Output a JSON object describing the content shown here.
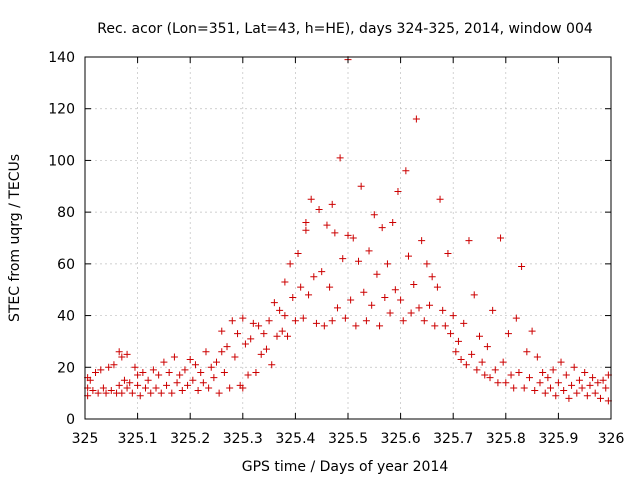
{
  "chart_data": {
    "type": "scatter",
    "title": "Rec. acor (Lon=351, Lat=43, h=HE), days 324-325, 2014, window 004",
    "xlabel": "GPS time / Days of year 2014",
    "ylabel": "STEC from uqrg / TECUs",
    "xlim": [
      325,
      326
    ],
    "ylim": [
      0,
      140
    ],
    "xticks": [
      "325",
      "325.1",
      "325.2",
      "325.3",
      "325.4",
      "325.5",
      "325.6",
      "325.7",
      "325.8",
      "325.9",
      "326"
    ],
    "yticks": [
      "0",
      "20",
      "40",
      "60",
      "80",
      "100",
      "120",
      "140"
    ],
    "grid": true,
    "marker": "plus",
    "marker_color": "#cc0000",
    "series": [
      {
        "name": "",
        "points": [
          [
            325.005,
            16
          ],
          [
            325.005,
            12
          ],
          [
            325.005,
            9
          ],
          [
            325.01,
            15
          ],
          [
            325.015,
            11
          ],
          [
            325.02,
            18
          ],
          [
            325.025,
            10
          ],
          [
            325.03,
            19
          ],
          [
            325.035,
            12
          ],
          [
            325.04,
            10
          ],
          [
            325.045,
            20
          ],
          [
            325.05,
            11
          ],
          [
            325.055,
            21
          ],
          [
            325.06,
            10
          ],
          [
            325.065,
            26
          ],
          [
            325.065,
            13
          ],
          [
            325.07,
            24
          ],
          [
            325.07,
            10
          ],
          [
            325.075,
            15
          ],
          [
            325.08,
            12
          ],
          [
            325.08,
            25
          ],
          [
            325.085,
            14
          ],
          [
            325.09,
            10
          ],
          [
            325.095,
            20
          ],
          [
            325.1,
            13
          ],
          [
            325.1,
            17
          ],
          [
            325.105,
            9
          ],
          [
            325.11,
            18
          ],
          [
            325.115,
            12
          ],
          [
            325.12,
            15
          ],
          [
            325.125,
            10
          ],
          [
            325.13,
            19
          ],
          [
            325.135,
            12
          ],
          [
            325.14,
            17
          ],
          [
            325.145,
            10
          ],
          [
            325.15,
            22
          ],
          [
            325.155,
            13
          ],
          [
            325.16,
            18
          ],
          [
            325.165,
            10
          ],
          [
            325.17,
            24
          ],
          [
            325.175,
            14
          ],
          [
            325.18,
            17
          ],
          [
            325.185,
            11
          ],
          [
            325.19,
            19
          ],
          [
            325.195,
            13
          ],
          [
            325.2,
            23
          ],
          [
            325.205,
            15
          ],
          [
            325.21,
            21
          ],
          [
            325.215,
            11
          ],
          [
            325.22,
            18
          ],
          [
            325.225,
            14
          ],
          [
            325.23,
            26
          ],
          [
            325.235,
            12
          ],
          [
            325.24,
            20
          ],
          [
            325.245,
            16
          ],
          [
            325.25,
            22
          ],
          [
            325.255,
            10
          ],
          [
            325.26,
            34
          ],
          [
            325.26,
            26
          ],
          [
            325.265,
            18
          ],
          [
            325.27,
            28
          ],
          [
            325.275,
            12
          ],
          [
            325.28,
            38
          ],
          [
            325.285,
            24
          ],
          [
            325.29,
            33
          ],
          [
            325.295,
            13
          ],
          [
            325.3,
            39
          ],
          [
            325.3,
            12
          ],
          [
            325.305,
            29
          ],
          [
            325.31,
            17
          ],
          [
            325.315,
            31
          ],
          [
            325.32,
            37
          ],
          [
            325.325,
            18
          ],
          [
            325.33,
            36
          ],
          [
            325.335,
            25
          ],
          [
            325.34,
            33
          ],
          [
            325.345,
            27
          ],
          [
            325.35,
            38
          ],
          [
            325.355,
            21
          ],
          [
            325.36,
            45
          ],
          [
            325.365,
            32
          ],
          [
            325.37,
            42
          ],
          [
            325.375,
            34
          ],
          [
            325.38,
            53
          ],
          [
            325.38,
            40
          ],
          [
            325.385,
            32
          ],
          [
            325.39,
            60
          ],
          [
            325.395,
            47
          ],
          [
            325.4,
            38
          ],
          [
            325.405,
            64
          ],
          [
            325.41,
            51
          ],
          [
            325.415,
            39
          ],
          [
            325.42,
            73
          ],
          [
            325.42,
            76
          ],
          [
            325.425,
            48
          ],
          [
            325.43,
            85
          ],
          [
            325.435,
            55
          ],
          [
            325.44,
            37
          ],
          [
            325.445,
            81
          ],
          [
            325.45,
            57
          ],
          [
            325.455,
            36
          ],
          [
            325.46,
            75
          ],
          [
            325.465,
            51
          ],
          [
            325.47,
            83
          ],
          [
            325.47,
            38
          ],
          [
            325.475,
            72
          ],
          [
            325.48,
            43
          ],
          [
            325.485,
            101
          ],
          [
            325.49,
            62
          ],
          [
            325.495,
            39
          ],
          [
            325.5,
            139
          ],
          [
            325.5,
            71
          ],
          [
            325.505,
            46
          ],
          [
            325.51,
            70
          ],
          [
            325.515,
            36
          ],
          [
            325.52,
            61
          ],
          [
            325.525,
            90
          ],
          [
            325.53,
            49
          ],
          [
            325.535,
            38
          ],
          [
            325.54,
            65
          ],
          [
            325.545,
            44
          ],
          [
            325.55,
            79
          ],
          [
            325.555,
            56
          ],
          [
            325.56,
            36
          ],
          [
            325.565,
            74
          ],
          [
            325.57,
            47
          ],
          [
            325.575,
            60
          ],
          [
            325.58,
            41
          ],
          [
            325.585,
            76
          ],
          [
            325.59,
            50
          ],
          [
            325.595,
            88
          ],
          [
            325.6,
            46
          ],
          [
            325.605,
            38
          ],
          [
            325.61,
            96
          ],
          [
            325.615,
            63
          ],
          [
            325.62,
            41
          ],
          [
            325.625,
            52
          ],
          [
            325.63,
            116
          ],
          [
            325.635,
            43
          ],
          [
            325.64,
            69
          ],
          [
            325.645,
            38
          ],
          [
            325.65,
            60
          ],
          [
            325.655,
            44
          ],
          [
            325.66,
            55
          ],
          [
            325.665,
            36
          ],
          [
            325.67,
            51
          ],
          [
            325.675,
            85
          ],
          [
            325.68,
            42
          ],
          [
            325.685,
            36
          ],
          [
            325.69,
            64
          ],
          [
            325.695,
            33
          ],
          [
            325.7,
            40
          ],
          [
            325.705,
            26
          ],
          [
            325.71,
            30
          ],
          [
            325.715,
            23
          ],
          [
            325.72,
            37
          ],
          [
            325.725,
            21
          ],
          [
            325.73,
            69
          ],
          [
            325.735,
            25
          ],
          [
            325.74,
            48
          ],
          [
            325.745,
            19
          ],
          [
            325.75,
            32
          ],
          [
            325.755,
            22
          ],
          [
            325.76,
            17
          ],
          [
            325.765,
            28
          ],
          [
            325.77,
            16
          ],
          [
            325.775,
            42
          ],
          [
            325.78,
            19
          ],
          [
            325.785,
            14
          ],
          [
            325.79,
            70
          ],
          [
            325.795,
            22
          ],
          [
            325.8,
            14
          ],
          [
            325.805,
            33
          ],
          [
            325.81,
            17
          ],
          [
            325.815,
            12
          ],
          [
            325.82,
            39
          ],
          [
            325.825,
            18
          ],
          [
            325.83,
            59
          ],
          [
            325.835,
            12
          ],
          [
            325.84,
            26
          ],
          [
            325.845,
            16
          ],
          [
            325.85,
            34
          ],
          [
            325.855,
            11
          ],
          [
            325.86,
            24
          ],
          [
            325.865,
            14
          ],
          [
            325.87,
            18
          ],
          [
            325.875,
            10
          ],
          [
            325.88,
            16
          ],
          [
            325.885,
            12
          ],
          [
            325.89,
            19
          ],
          [
            325.895,
            9
          ],
          [
            325.9,
            14
          ],
          [
            325.905,
            22
          ],
          [
            325.91,
            11
          ],
          [
            325.915,
            17
          ],
          [
            325.92,
            8
          ],
          [
            325.925,
            13
          ],
          [
            325.93,
            20
          ],
          [
            325.935,
            10
          ],
          [
            325.94,
            15
          ],
          [
            325.945,
            12
          ],
          [
            325.95,
            18
          ],
          [
            325.955,
            9
          ],
          [
            325.96,
            13
          ],
          [
            325.965,
            16
          ],
          [
            325.97,
            10
          ],
          [
            325.975,
            14
          ],
          [
            325.98,
            8
          ],
          [
            325.985,
            15
          ],
          [
            325.99,
            12
          ],
          [
            325.995,
            7
          ],
          [
            325.995,
            17
          ]
        ]
      }
    ]
  }
}
